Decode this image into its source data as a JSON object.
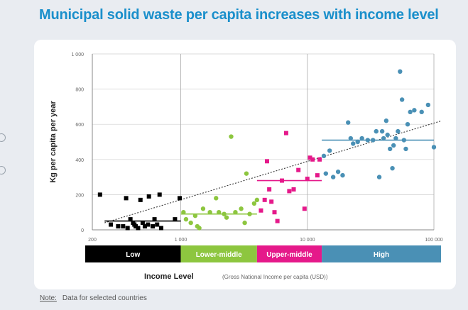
{
  "chart_data": {
    "type": "scatter",
    "title": "Municipal solid waste per capita increases with income level",
    "xlabel": "Income Level",
    "xlabel_note": "(Gross National Income per capita (USD))",
    "ylabel": "Kg per capita per year",
    "x_scale": "log",
    "xlim": [
      200,
      100000
    ],
    "ylim": [
      0,
      1000
    ],
    "x_ticks": [
      {
        "value": 200,
        "label": "200"
      },
      {
        "value": 1000,
        "label": "1 000"
      },
      {
        "value": 10000,
        "label": "10 000"
      },
      {
        "value": 100000,
        "label": "100 000"
      }
    ],
    "y_ticks": [
      {
        "value": 0,
        "label": "0"
      },
      {
        "value": 200,
        "label": "200"
      },
      {
        "value": 400,
        "label": "400"
      },
      {
        "value": 600,
        "label": "600"
      },
      {
        "value": 800,
        "label": "800"
      },
      {
        "value": 1000,
        "label": "1 000"
      }
    ],
    "grid": true,
    "income_bands": [
      {
        "label": "Low",
        "from": 200,
        "to": 1000,
        "color": "#000000"
      },
      {
        "label": "Lower-middle",
        "from": 1000,
        "to": 4000,
        "color": "#8dc63f"
      },
      {
        "label": "Upper-middle",
        "from": 4000,
        "to": 13000,
        "color": "#e5198a"
      },
      {
        "label": "High",
        "from": 13000,
        "to": 100000,
        "color": "#4a90b5"
      }
    ],
    "series": [
      {
        "name": "Low",
        "color": "#000000",
        "marker": "square",
        "points": [
          [
            230,
            200
          ],
          [
            280,
            30
          ],
          [
            320,
            20
          ],
          [
            350,
            20
          ],
          [
            370,
            180
          ],
          [
            380,
            10
          ],
          [
            400,
            60
          ],
          [
            420,
            40
          ],
          [
            430,
            30
          ],
          [
            440,
            20
          ],
          [
            460,
            10
          ],
          [
            480,
            170
          ],
          [
            500,
            40
          ],
          [
            520,
            20
          ],
          [
            550,
            30
          ],
          [
            560,
            190
          ],
          [
            600,
            20
          ],
          [
            620,
            60
          ],
          [
            650,
            30
          ],
          [
            680,
            200
          ],
          [
            700,
            10
          ],
          [
            900,
            60
          ],
          [
            980,
            180
          ]
        ],
        "mean": 50,
        "mean_from": 250,
        "mean_to": 1000
      },
      {
        "name": "Lower-middle",
        "color": "#8dc63f",
        "marker": "circle",
        "points": [
          [
            1050,
            100
          ],
          [
            1100,
            60
          ],
          [
            1200,
            40
          ],
          [
            1300,
            80
          ],
          [
            1350,
            20
          ],
          [
            1400,
            10
          ],
          [
            1500,
            120
          ],
          [
            1700,
            100
          ],
          [
            1900,
            180
          ],
          [
            2000,
            100
          ],
          [
            2200,
            90
          ],
          [
            2300,
            70
          ],
          [
            2500,
            530
          ],
          [
            2700,
            100
          ],
          [
            3000,
            120
          ],
          [
            3200,
            40
          ],
          [
            3300,
            320
          ],
          [
            3500,
            90
          ],
          [
            3800,
            150
          ],
          [
            4000,
            170
          ]
        ],
        "mean": 90,
        "mean_from": 1000,
        "mean_to": 4000
      },
      {
        "name": "Upper-middle",
        "color": "#e5198a",
        "marker": "square",
        "points": [
          [
            4300,
            110
          ],
          [
            4600,
            170
          ],
          [
            4800,
            390
          ],
          [
            5000,
            230
          ],
          [
            5200,
            160
          ],
          [
            5500,
            100
          ],
          [
            5800,
            50
          ],
          [
            6300,
            280
          ],
          [
            6800,
            550
          ],
          [
            7200,
            220
          ],
          [
            7800,
            230
          ],
          [
            8500,
            340
          ],
          [
            9500,
            120
          ],
          [
            10000,
            290
          ],
          [
            10500,
            410
          ],
          [
            11000,
            400
          ],
          [
            12000,
            310
          ],
          [
            12500,
            400
          ]
        ],
        "mean": 280,
        "mean_from": 4000,
        "mean_to": 13000
      },
      {
        "name": "High",
        "color": "#4a90b5",
        "marker": "circle",
        "points": [
          [
            13500,
            420
          ],
          [
            14000,
            320
          ],
          [
            15000,
            450
          ],
          [
            16000,
            300
          ],
          [
            17500,
            330
          ],
          [
            19000,
            310
          ],
          [
            21000,
            610
          ],
          [
            22000,
            520
          ],
          [
            23000,
            490
          ],
          [
            25000,
            500
          ],
          [
            27000,
            520
          ],
          [
            30000,
            510
          ],
          [
            33000,
            510
          ],
          [
            35000,
            560
          ],
          [
            37000,
            300
          ],
          [
            39000,
            560
          ],
          [
            40000,
            520
          ],
          [
            42000,
            620
          ],
          [
            43000,
            540
          ],
          [
            45000,
            460
          ],
          [
            47000,
            350
          ],
          [
            48000,
            480
          ],
          [
            50000,
            520
          ],
          [
            52000,
            560
          ],
          [
            54000,
            900
          ],
          [
            56000,
            740
          ],
          [
            58000,
            510
          ],
          [
            60000,
            460
          ],
          [
            62000,
            600
          ],
          [
            65000,
            670
          ],
          [
            70000,
            680
          ],
          [
            80000,
            670
          ],
          [
            90000,
            710
          ],
          [
            100000,
            470
          ]
        ],
        "mean": 510,
        "mean_from": 13000,
        "mean_to": 100000
      }
    ],
    "trendline": [
      [
        250,
        40
      ],
      [
        120000,
        620
      ]
    ]
  },
  "footnote": {
    "label": "Note:",
    "text": "Data for selected countries"
  },
  "colors": {
    "title": "#1a8fcb",
    "trend": "#333333",
    "grid": "#cfcfcf"
  }
}
